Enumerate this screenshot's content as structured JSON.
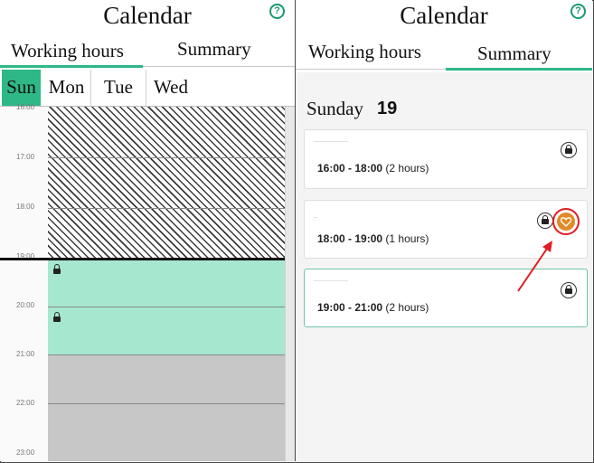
{
  "left": {
    "title": "Calendar",
    "tabs": {
      "working": "Working hours",
      "summary": "Summary"
    },
    "days": [
      "Sun",
      "Mon",
      "Tue",
      "Wed"
    ],
    "time_labels": [
      "16:00",
      "17:00",
      "18:00",
      "19:00",
      "20:00",
      "21:00",
      "22:00",
      "23:00"
    ]
  },
  "right": {
    "title": "Calendar",
    "tabs": {
      "working": "Working hours",
      "summary": "Summary"
    },
    "day_name": "Sunday",
    "day_number": "19",
    "slots": [
      {
        "time": "16:00 - 18:00",
        "duration": "(2 hours)"
      },
      {
        "time": "18:00 - 19:00",
        "duration": "(1 hours)"
      },
      {
        "time": "19:00 - 21:00",
        "duration": "(2 hours)"
      }
    ]
  },
  "colors": {
    "accent": "#2eb887",
    "available": "#a6e7cf",
    "highlight": "#e11b22",
    "heart_badge": "#e28a28"
  },
  "icons": {
    "help": "question-circle-icon",
    "lock": "lock-icon",
    "heart": "heart-icon",
    "arrow": "red-arrow-annotation"
  }
}
